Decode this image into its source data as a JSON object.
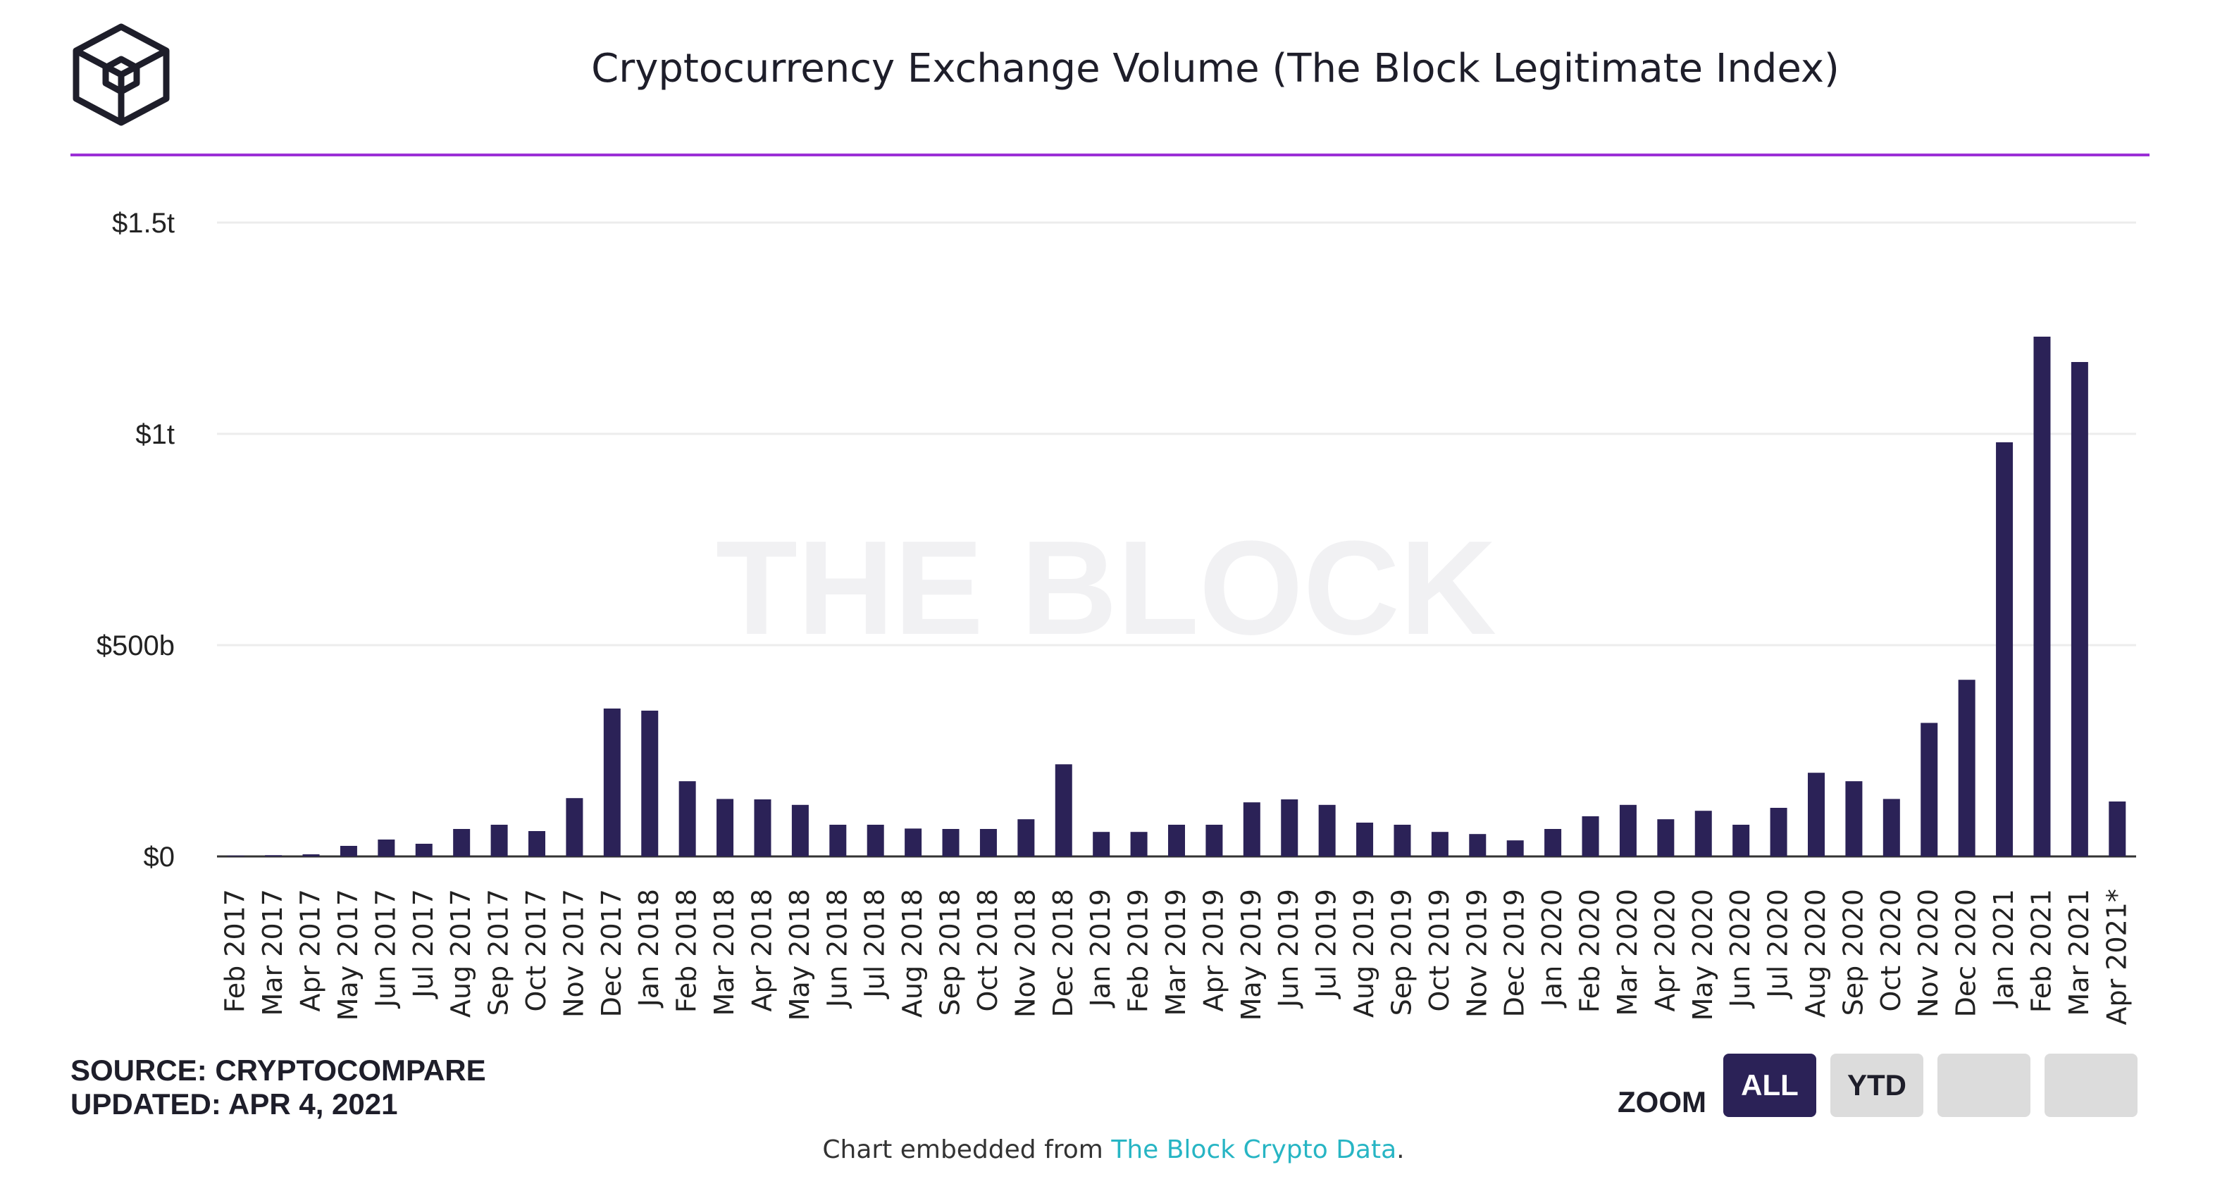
{
  "header": {
    "title": "Cryptocurrency Exchange Volume (The Block Legitimate Index)",
    "logo_icon": "the-block-cube-logo"
  },
  "watermark": "THE BLOCK",
  "source": {
    "line1": "SOURCE: CRYPTOCOMPARE",
    "line2": "UPDATED: APR 4, 2021"
  },
  "zoom": {
    "label": "ZOOM",
    "buttons": [
      "ALL",
      "YTD",
      "",
      ""
    ],
    "selected": "ALL"
  },
  "footer": {
    "prefix": "Chart embedded from ",
    "link": "The Block Crypto Data",
    "suffix": "."
  },
  "colors": {
    "bar": "#2b2257",
    "accent_rule": "#9b2fd6",
    "link": "#27b5c4",
    "grid": "#ececec"
  },
  "chart_data": {
    "type": "bar",
    "title": "Cryptocurrency Exchange Volume (The Block Legitimate Index)",
    "xlabel": "",
    "ylabel": "",
    "ylim": [
      0,
      1500000000000
    ],
    "yticks": [
      {
        "value": 0,
        "label": "$0"
      },
      {
        "value": 500000000000,
        "label": "$500b"
      },
      {
        "value": 1000000000000,
        "label": "$1t"
      },
      {
        "value": 1500000000000,
        "label": "$1.5t"
      }
    ],
    "grid": true,
    "legend": "none",
    "categories": [
      "Feb 2017",
      "Mar 2017",
      "Apr 2017",
      "May 2017",
      "Jun 2017",
      "Jul 2017",
      "Aug 2017",
      "Sep 2017",
      "Oct 2017",
      "Nov 2017",
      "Dec 2017",
      "Jan 2018",
      "Feb 2018",
      "Mar 2018",
      "Apr 2018",
      "May 2018",
      "Jun 2018",
      "Jul 2018",
      "Aug 2018",
      "Sep 2018",
      "Oct 2018",
      "Nov 2018",
      "Dec 2018",
      "Jan 2019",
      "Feb 2019",
      "Mar 2019",
      "Apr 2019",
      "May 2019",
      "Jun 2019",
      "Jul 2019",
      "Aug 2019",
      "Sep 2019",
      "Oct 2019",
      "Nov 2019",
      "Dec 2019",
      "Jan 2020",
      "Feb 2020",
      "Mar 2020",
      "Apr 2020",
      "May 2020",
      "Jun 2020",
      "Jul 2020",
      "Aug 2020",
      "Sep 2020",
      "Oct 2020",
      "Nov 2020",
      "Dec 2020",
      "Jan 2021",
      "Feb 2021",
      "Mar 2021",
      "Apr 2021*"
    ],
    "values": [
      2000000000,
      3000000000,
      5000000000,
      25000000000,
      40000000000,
      30000000000,
      65000000000,
      75000000000,
      60000000000,
      138000000000,
      350000000000,
      345000000000,
      178000000000,
      136000000000,
      135000000000,
      122000000000,
      75000000000,
      75000000000,
      66000000000,
      65000000000,
      65000000000,
      88000000000,
      218000000000,
      58000000000,
      58000000000,
      75000000000,
      75000000000,
      128000000000,
      135000000000,
      122000000000,
      80000000000,
      75000000000,
      58000000000,
      53000000000,
      38000000000,
      65000000000,
      95000000000,
      122000000000,
      88000000000,
      108000000000,
      75000000000,
      115000000000,
      198000000000,
      178000000000,
      136000000000,
      316000000000,
      418000000000,
      980000000000,
      1230000000000,
      1170000000000,
      130000000000
    ]
  }
}
